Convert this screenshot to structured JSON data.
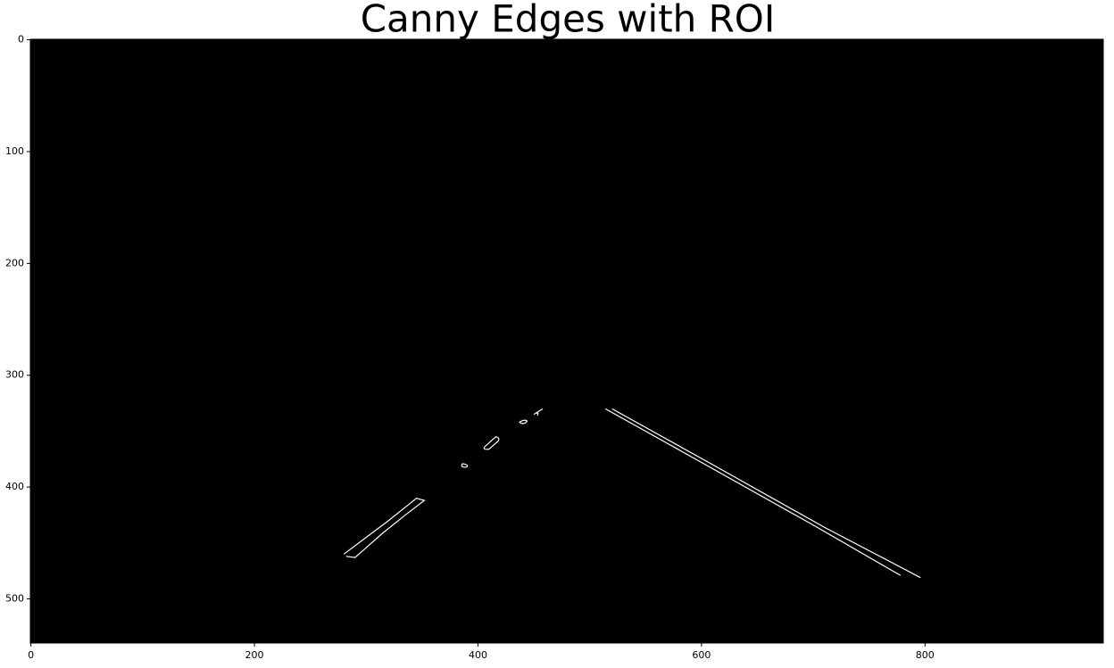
{
  "chart_data": {
    "type": "image",
    "title": "Canny Edges with ROI",
    "xlim": [
      -0.5,
      959.5
    ],
    "ylim": [
      539.5,
      -0.5
    ],
    "xticks": [
      0,
      200,
      400,
      600,
      800
    ],
    "yticks": [
      0,
      100,
      200,
      300,
      400,
      500
    ]
  }
}
